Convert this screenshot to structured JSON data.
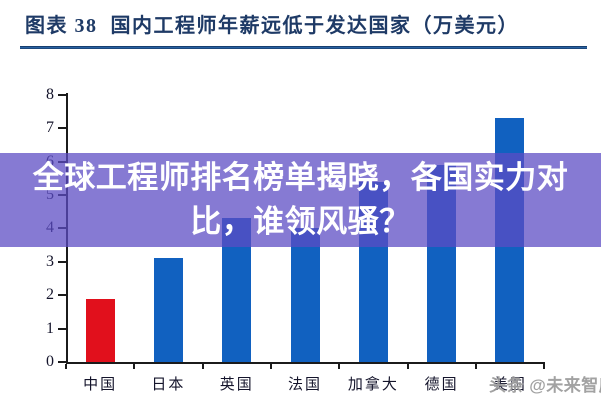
{
  "header": {
    "title": "图表 38  国内工程师年薪远低于发达国家（万美元）"
  },
  "overlay": {
    "line1": "全球工程师排名榜单揭晓，各国实力对",
    "line2": "比，谁领风骚？",
    "full_text": "全球工程师排名榜单揭晓，各国实力对比，谁领风骚？"
  },
  "watermark": {
    "text": "头条 @未来智库"
  },
  "chart_data": {
    "type": "bar",
    "title": "国内工程师年薪远低于发达国家（万美元）",
    "categories": [
      "中国",
      "日本",
      "英国",
      "法国",
      "加拿大",
      "德国",
      "美国"
    ],
    "values": [
      1.9,
      3.1,
      4.3,
      4.0,
      5.4,
      5.9,
      7.3
    ],
    "unit_label": "万美元",
    "xlabel": "",
    "ylabel": "",
    "ylim": [
      0,
      8
    ],
    "yticks": [
      0,
      1,
      2,
      3,
      4,
      5,
      6,
      7,
      8
    ],
    "grid": false,
    "legend": false,
    "highlight_category": "中国",
    "colors": {
      "bar": "#1161c0",
      "highlight": "#e1101c",
      "axis": "#1b1b1b",
      "tick_label": "#14142b"
    }
  },
  "theme": {
    "title_color": "#1e3a66",
    "underline_color": "#17406f",
    "overlay_bg": "rgba(92,75,196,0.74)",
    "overlay_text_color": "#ffffff",
    "watermark_color": "#9b9b9b",
    "background": "#ffffff"
  }
}
